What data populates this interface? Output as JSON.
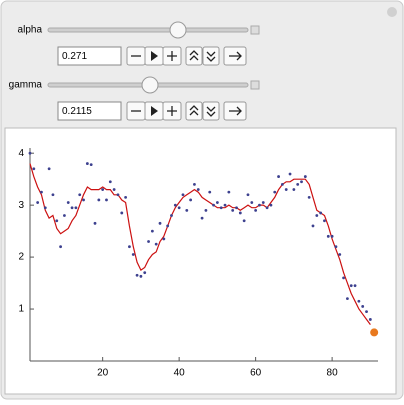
{
  "controls": [
    {
      "label": "alpha",
      "value": "0.271"
    },
    {
      "label": "gamma",
      "value": "0.2115"
    }
  ],
  "chart_data": {
    "type": "scatter",
    "xlim": [
      1,
      92
    ],
    "ylim": [
      0,
      4.1
    ],
    "xticks": [
      20,
      40,
      60,
      80
    ],
    "yticks": [
      1,
      2,
      3,
      4
    ],
    "series": [
      {
        "kind": "points",
        "color": "#3d418f",
        "x": [
          1,
          2,
          3,
          4,
          5,
          6,
          7,
          8,
          9,
          10,
          11,
          12,
          13,
          14,
          15,
          16,
          17,
          18,
          19,
          20,
          21,
          22,
          23,
          24,
          25,
          26,
          27,
          28,
          29,
          30,
          31,
          32,
          33,
          34,
          35,
          36,
          37,
          38,
          39,
          40,
          41,
          42,
          43,
          44,
          45,
          46,
          47,
          48,
          49,
          50,
          51,
          52,
          53,
          54,
          55,
          56,
          57,
          58,
          59,
          60,
          61,
          62,
          63,
          64,
          65,
          66,
          67,
          68,
          69,
          70,
          71,
          72,
          73,
          74,
          75,
          76,
          77,
          78,
          79,
          80,
          81,
          82,
          83,
          84,
          85,
          86,
          87,
          88,
          89,
          90
        ],
        "values": [
          4.0,
          3.7,
          3.05,
          3.25,
          2.95,
          3.7,
          3.2,
          2.7,
          2.2,
          2.8,
          3.05,
          2.95,
          2.95,
          3.2,
          3.1,
          3.8,
          3.78,
          2.65,
          3.1,
          3.3,
          3.1,
          3.45,
          3.3,
          3.2,
          2.85,
          3.15,
          2.2,
          2.05,
          1.65,
          1.63,
          1.7,
          2.3,
          2.5,
          2.25,
          2.65,
          2.35,
          2.6,
          2.8,
          3.0,
          2.95,
          3.2,
          2.9,
          3.1,
          3.4,
          3.3,
          2.75,
          2.9,
          3.25,
          3.0,
          3.05,
          2.95,
          3.0,
          3.25,
          2.9,
          2.95,
          2.85,
          2.7,
          3.2,
          3.05,
          2.9,
          3.0,
          3.05,
          2.95,
          3.0,
          3.25,
          3.55,
          3.4,
          3.3,
          3.6,
          3.3,
          3.4,
          3.45,
          3.55,
          3.15,
          2.6,
          2.8,
          2.85,
          2.7,
          2.4,
          2.4,
          2.2,
          2.05,
          1.6,
          1.2,
          1.45,
          1.45,
          1.15,
          1.05,
          0.95,
          0.8
        ]
      },
      {
        "kind": "line",
        "color": "#cc1111",
        "x": [
          1,
          2,
          3,
          4,
          5,
          6,
          7,
          8,
          9,
          10,
          11,
          12,
          13,
          14,
          15,
          16,
          17,
          18,
          19,
          20,
          21,
          22,
          23,
          24,
          25,
          26,
          27,
          28,
          29,
          30,
          31,
          32,
          33,
          34,
          35,
          36,
          37,
          38,
          39,
          40,
          41,
          42,
          43,
          44,
          45,
          46,
          47,
          48,
          49,
          50,
          51,
          52,
          53,
          54,
          55,
          56,
          57,
          58,
          59,
          60,
          61,
          62,
          63,
          64,
          65,
          66,
          67,
          68,
          69,
          70,
          71,
          72,
          73,
          74,
          75,
          76,
          77,
          78,
          79,
          80,
          81,
          82,
          83,
          84,
          85,
          86,
          87,
          88,
          89,
          90
        ],
        "values": [
          3.8,
          3.55,
          3.35,
          3.2,
          2.9,
          2.75,
          2.8,
          2.55,
          2.45,
          2.5,
          2.55,
          2.7,
          2.8,
          3.0,
          3.2,
          3.35,
          3.3,
          3.3,
          3.3,
          3.35,
          3.3,
          3.3,
          3.2,
          3.2,
          3.1,
          3.05,
          2.6,
          2.2,
          1.9,
          1.75,
          1.8,
          1.95,
          2.05,
          2.1,
          2.3,
          2.4,
          2.6,
          2.8,
          2.95,
          3.05,
          3.15,
          3.2,
          3.25,
          3.3,
          3.25,
          3.15,
          3.1,
          3.05,
          3.0,
          2.95,
          2.95,
          2.95,
          3.0,
          2.95,
          2.95,
          2.9,
          2.95,
          3.0,
          2.95,
          2.95,
          3.0,
          3.0,
          2.95,
          3.05,
          3.15,
          3.3,
          3.4,
          3.45,
          3.45,
          3.5,
          3.5,
          3.5,
          3.5,
          3.4,
          3.15,
          2.9,
          2.85,
          2.8,
          2.6,
          2.35,
          2.15,
          1.95,
          1.7,
          1.5,
          1.3,
          1.15,
          1.0,
          0.9,
          0.8,
          0.7
        ]
      },
      {
        "kind": "points",
        "color": "#e8791e",
        "big": true,
        "x": [
          91
        ],
        "values": [
          0.55
        ]
      }
    ]
  }
}
